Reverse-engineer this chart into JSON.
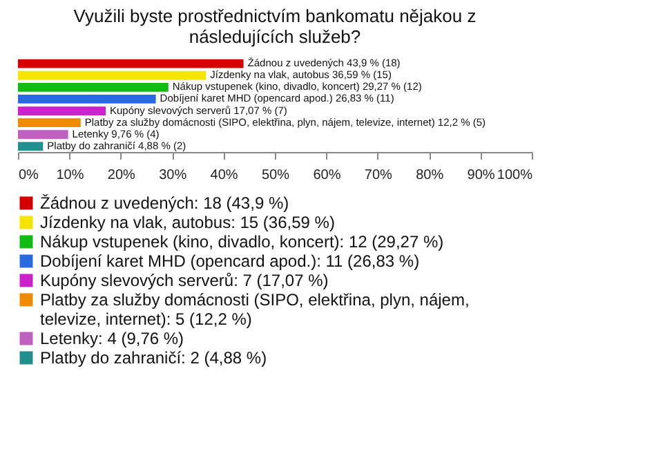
{
  "chart_data": {
    "type": "bar",
    "orientation": "horizontal",
    "title": "Využili byste prostřednictvím bankomatu nějakou z následujících služeb?",
    "categories": [
      null,
      null,
      null,
      null,
      null,
      null,
      null,
      null
    ],
    "values": [
      43.9,
      36.59,
      29.27,
      26.83,
      17.07,
      12.2,
      9.76,
      4.88
    ],
    "value_labels": [
      "Žádnou z uvedených 43,9 % (18)",
      "Jízdenky na vlak, autobus 36,59 % (15)",
      "Nákup vstupenek (kino, divadlo, koncert) 29,27 % (12)",
      "Dobíjení karet MHD (opencard apod.) 26,83 % (11)",
      "Kupóny slevových serverů 17,07 % (7)",
      "Platby za služby domácnosti (SIPO, elektřina, plyn, nájem, televize, internet) 12,2 % (5)",
      "Letenky 9,76 % (4)",
      "Platby do zahraničí 4,88 % (2)"
    ],
    "colors": [
      "#d40000",
      "#f5e400",
      "#11bb11",
      "#2a6ae0",
      "#cc22cc",
      "#f08a00",
      "#c060c0",
      "#228f8f"
    ],
    "annotations": [
      "Žádnou z uvedených: 18 (43,9 %)",
      "Jízdenky na vlak, autobus: 15 (36,59 %)",
      "Nákup vstupenek (kino, divadlo, koncert): 12 (29,27 %)",
      "Dobíjení karet MHD (opencard apod.): 11 (26,83 %)",
      "Kupóny slevových serverů: 7 (17,07 %)",
      "Platby za služby domácnosti (SIPO, elektřina, plyn, nájem, televize, internet): 5 (12,2 %)",
      "Letenky: 4 (9,76 %)",
      "Platby do zahraničí: 2 (4,88 %)"
    ],
    "xlim": [
      0,
      100
    ],
    "xticks": [
      {
        "value": 0,
        "label": "0%"
      },
      {
        "value": 10,
        "label": "10%"
      },
      {
        "value": 20,
        "label": "20%"
      },
      {
        "value": 30,
        "label": "30%"
      },
      {
        "value": 40,
        "label": "40%"
      },
      {
        "value": 50,
        "label": "50%"
      },
      {
        "value": 60,
        "label": "60%"
      },
      {
        "value": 70,
        "label": "70%"
      },
      {
        "value": 80,
        "label": "80%"
      },
      {
        "value": 90,
        "label": "90%"
      },
      {
        "value": 100,
        "label": "100%"
      }
    ],
    "tick_labels": "x"
  }
}
